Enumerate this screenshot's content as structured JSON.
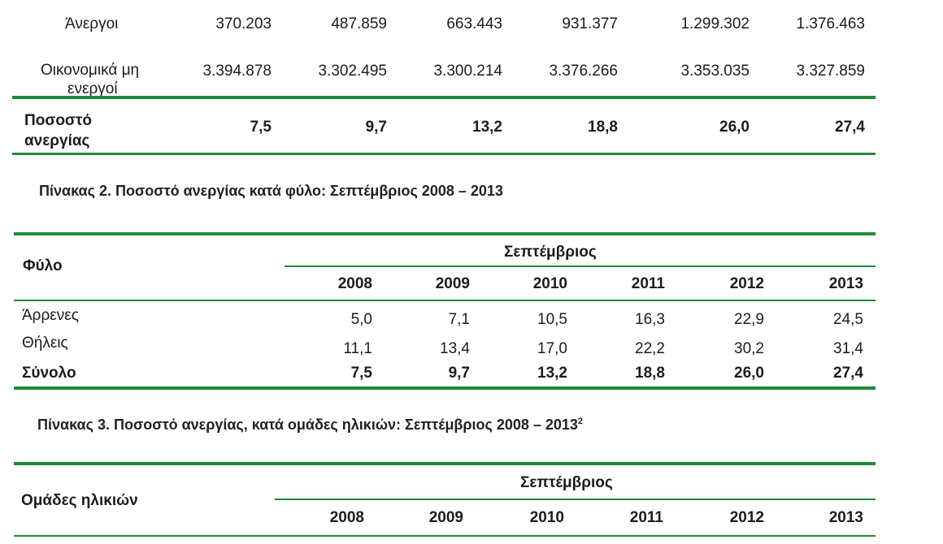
{
  "colors": {
    "rule": "#1f8a3a",
    "text": "#1c1c1c"
  },
  "table1": {
    "rows": [
      {
        "label": "Άνεργοι",
        "values": [
          "370.203",
          "487.859",
          "663.443",
          "931.377",
          "1.299.302",
          "1.376.463"
        ]
      },
      {
        "label_line1": "Οικονομικά μη",
        "label_line2": "ενεργοί",
        "values": [
          "3.394.878",
          "3.302.495",
          "3.300.214",
          "3.376.266",
          "3.353.035",
          "3.327.859"
        ]
      }
    ],
    "total": {
      "label_line1": "Ποσοστό",
      "label_line2": "ανεργίας",
      "values": [
        "7,5",
        "9,7",
        "13,2",
        "18,8",
        "26,0",
        "27,4"
      ]
    }
  },
  "table2": {
    "title": "Πίνακας 2. Ποσοστό ανεργίας κατά φύλο: Σεπτέμβριος 2008 – 2013",
    "row_header": "Φύλο",
    "group_header": "Σεπτέμβριος",
    "years": [
      "2008",
      "2009",
      "2010",
      "2011",
      "2012",
      "2013"
    ],
    "rows": [
      {
        "label": "Άρρενες",
        "values": [
          "5,0",
          "7,1",
          "10,5",
          "16,3",
          "22,9",
          "24,5"
        ]
      },
      {
        "label": "Θήλεις",
        "values": [
          "11,1",
          "13,4",
          "17,0",
          "22,2",
          "30,2",
          "31,4"
        ]
      }
    ],
    "total": {
      "label": "Σύνολο",
      "values": [
        "7,5",
        "9,7",
        "13,2",
        "18,8",
        "26,0",
        "27,4"
      ]
    }
  },
  "table3": {
    "title": "Πίνακας 3. Ποσοστό ανεργίας, κατά ομάδες ηλικιών: Σεπτέμβριος 2008 – 2013",
    "title_sup": "2",
    "row_header": "Ομάδες ηλικιών",
    "group_header": "Σεπτέμβριος",
    "years": [
      "2008",
      "2009",
      "2010",
      "2011",
      "2012",
      "2013"
    ]
  }
}
